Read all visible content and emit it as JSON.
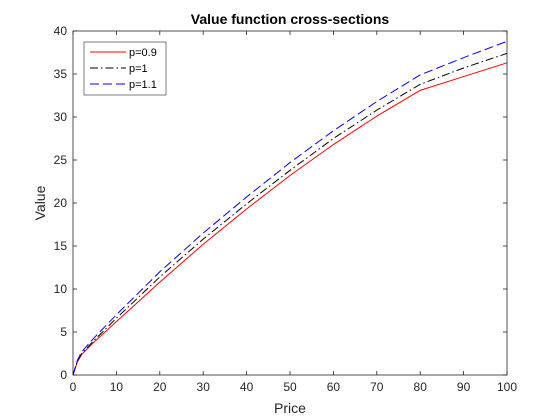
{
  "chart_data": {
    "type": "line",
    "title": "Value function cross-sections",
    "xlabel": "Price",
    "ylabel": "Value",
    "xlim": [
      0,
      100
    ],
    "ylim": [
      0,
      40
    ],
    "xticks": [
      0,
      10,
      20,
      30,
      40,
      50,
      60,
      70,
      80,
      90,
      100
    ],
    "yticks": [
      0,
      5,
      10,
      15,
      20,
      25,
      30,
      35,
      40
    ],
    "grid": false,
    "legend_position": "top-left",
    "x": [
      0,
      1,
      2,
      5,
      10,
      20,
      30,
      40,
      50,
      60,
      70,
      80,
      90,
      100
    ],
    "series": [
      {
        "name": "p=0.9",
        "color": "#ff0000",
        "line_style": "solid",
        "values": [
          0,
          1.5,
          2.4,
          3.9,
          6.2,
          10.8,
          15.2,
          19.3,
          23.2,
          26.8,
          30.1,
          33.1,
          34.7,
          36.3
        ]
      },
      {
        "name": "p=1",
        "color": "#000000",
        "line_style": "dash-dot",
        "values": [
          0,
          1.6,
          2.5,
          4.1,
          6.6,
          11.4,
          15.8,
          19.9,
          23.8,
          27.5,
          30.8,
          33.8,
          35.7,
          37.4
        ]
      },
      {
        "name": "p=1.1",
        "color": "#0000ff",
        "line_style": "dashed",
        "values": [
          0,
          1.7,
          2.7,
          4.4,
          7.0,
          12.0,
          16.5,
          20.7,
          24.7,
          28.4,
          31.8,
          34.9,
          36.9,
          38.8
        ]
      }
    ]
  }
}
